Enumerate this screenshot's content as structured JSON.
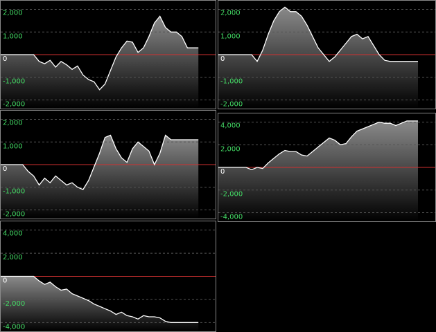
{
  "chart_data": [
    {
      "type": "area",
      "color": "#ffffff",
      "baseline_color": "#d03030",
      "grid": true,
      "ylim": [
        -2200,
        2200
      ],
      "yticks": [
        {
          "value": -2000,
          "label": "-2,000"
        },
        {
          "value": -1000,
          "label": "-1,000"
        },
        0,
        {
          "value": 1000,
          "label": "1,000"
        },
        {
          "value": 2000,
          "label": "2,000"
        }
      ],
      "values": [
        0,
        0,
        0,
        0,
        0,
        0,
        0,
        -300,
        -400,
        -250,
        -550,
        -300,
        -450,
        -650,
        -500,
        -900,
        -1100,
        -1200,
        -1550,
        -1300,
        -700,
        -100,
        300,
        600,
        550,
        100,
        300,
        800,
        1400,
        1700,
        1200,
        1000,
        1000,
        800,
        300,
        300,
        300
      ]
    },
    {
      "type": "area",
      "color": "#ffffff",
      "baseline_color": "#d03030",
      "grid": true,
      "ylim": [
        -2200,
        2200
      ],
      "yticks": [
        {
          "value": -2000,
          "label": "-2,000"
        },
        {
          "value": -1000,
          "label": "-1,000"
        },
        0,
        {
          "value": 1000,
          "label": "1,000"
        },
        {
          "value": 2000,
          "label": "2,000"
        }
      ],
      "values": [
        0,
        0,
        0,
        0,
        0,
        0,
        0,
        -300,
        200,
        900,
        1500,
        1900,
        2100,
        1900,
        1900,
        1700,
        1300,
        800,
        300,
        0,
        -300,
        -100,
        200,
        500,
        800,
        900,
        700,
        800,
        400,
        0,
        -250,
        -300,
        -300,
        -300,
        -300,
        -300,
        -300
      ]
    },
    {
      "type": "area",
      "color": "#ffffff",
      "baseline_color": "#d03030",
      "grid": true,
      "ylim": [
        -2200,
        2200
      ],
      "yticks": [
        {
          "value": -2000,
          "label": "-2,000"
        },
        {
          "value": -1000,
          "label": "-1,000"
        },
        0,
        {
          "value": 1000,
          "label": "1,000"
        },
        {
          "value": 2000,
          "label": "2,000"
        }
      ],
      "values": [
        0,
        0,
        0,
        0,
        0,
        -300,
        -500,
        -900,
        -600,
        -800,
        -500,
        -700,
        -900,
        -800,
        -1000,
        -1100,
        -700,
        -100,
        500,
        1200,
        1300,
        700,
        300,
        100,
        700,
        1000,
        800,
        600,
        0,
        500,
        1300,
        1100,
        1100,
        1100,
        1100,
        1100,
        1100
      ]
    },
    {
      "type": "area",
      "color": "#ffffff",
      "baseline_color": "#d03030",
      "grid": true,
      "ylim": [
        -4400,
        4400
      ],
      "yticks": [
        {
          "value": -4000,
          "label": "-4,000"
        },
        {
          "value": -2000,
          "label": "-2,000"
        },
        0,
        {
          "value": 2000,
          "label": "2,000"
        },
        {
          "value": 4000,
          "label": "4,000"
        }
      ],
      "values": [
        0,
        0,
        0,
        0,
        0,
        0,
        -200,
        0,
        -100,
        400,
        800,
        1200,
        1500,
        1400,
        1400,
        1100,
        1000,
        1400,
        1800,
        2200,
        2600,
        2400,
        2000,
        2100,
        2700,
        3200,
        3400,
        3600,
        3800,
        4000,
        3900,
        3900,
        3700,
        3900,
        4100,
        4100,
        4100
      ]
    },
    {
      "type": "area",
      "color": "#ffffff",
      "baseline_color": "#d03030",
      "grid": true,
      "ylim": [
        -4400,
        4400
      ],
      "yticks": [
        {
          "value": -4000,
          "label": "-4,000"
        },
        {
          "value": -2000,
          "label": "-2,000"
        },
        0,
        {
          "value": 2000,
          "label": "2,000"
        },
        {
          "value": 4000,
          "label": "4,000"
        }
      ],
      "values": [
        0,
        0,
        0,
        0,
        0,
        0,
        0,
        -400,
        -700,
        -500,
        -900,
        -1200,
        -1100,
        -1500,
        -1700,
        -1900,
        -2100,
        -2400,
        -2600,
        -2800,
        -3000,
        -3300,
        -3100,
        -3400,
        -3500,
        -3700,
        -3400,
        -3500,
        -3500,
        -3600,
        -3900,
        -4000,
        -4000,
        -4000,
        -4000,
        -4000,
        -4000
      ]
    }
  ]
}
